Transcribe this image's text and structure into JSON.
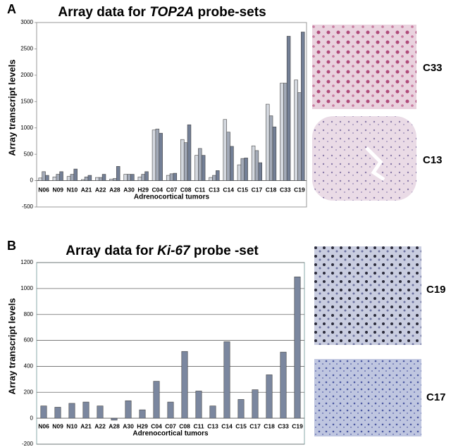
{
  "chart_data": [
    {
      "type": "bar",
      "panel_label": "A",
      "title": [
        "Array data for ",
        "TOP2A",
        " probe-sets"
      ],
      "ylabel": "Array transcript levels",
      "xlabel": "Adrenocortical tumors",
      "categories": [
        "N06",
        "N09",
        "N10",
        "A21",
        "A22",
        "A28",
        "A30",
        "H29",
        "C04",
        "C07",
        "C08",
        "C11",
        "C13",
        "C14",
        "C15",
        "C17",
        "C18",
        "C33",
        "C19"
      ],
      "series": [
        {
          "color": "#d4d8df",
          "values": [
            50,
            70,
            80,
            20,
            60,
            30,
            120,
            70,
            960,
            100,
            780,
            480,
            60,
            1160,
            300,
            660,
            1450,
            1850,
            1910
          ]
        },
        {
          "color": "#a3aab8",
          "values": [
            170,
            120,
            120,
            70,
            60,
            40,
            120,
            120,
            980,
            130,
            720,
            610,
            100,
            920,
            420,
            570,
            1230,
            1850,
            1670
          ]
        },
        {
          "color": "#737f96",
          "values": [
            100,
            170,
            220,
            100,
            120,
            270,
            120,
            170,
            900,
            140,
            1060,
            480,
            190,
            650,
            430,
            340,
            1020,
            2740,
            2820
          ]
        }
      ],
      "ylim": [
        -500,
        3000
      ],
      "yticks": [
        -500,
        0,
        500,
        1000,
        1500,
        2000,
        2500,
        3000
      ],
      "grid": false,
      "image_labels": [
        "C33",
        "C13"
      ]
    },
    {
      "type": "bar",
      "panel_label": "B",
      "title": [
        "Array data for ",
        "Ki-67",
        " probe -set"
      ],
      "ylabel": "Array transcript levels",
      "xlabel": "Adrenocortical tumors",
      "categories": [
        "N06",
        "N09",
        "N10",
        "A21",
        "A22",
        "A28",
        "A30",
        "H29",
        "C04",
        "C07",
        "C08",
        "C11",
        "C13",
        "C14",
        "C15",
        "C17",
        "C18",
        "C33",
        "C19"
      ],
      "series": [
        {
          "color": "#7b879f",
          "values": [
            95,
            85,
            115,
            125,
            95,
            -15,
            135,
            65,
            285,
            125,
            515,
            210,
            95,
            590,
            145,
            220,
            335,
            510,
            1090
          ]
        }
      ],
      "ylim": [
        -200,
        1200
      ],
      "yticks": [
        -200,
        0,
        200,
        400,
        600,
        800,
        1000,
        1200
      ],
      "grid": true,
      "image_labels": [
        "C19",
        "C17"
      ]
    }
  ]
}
